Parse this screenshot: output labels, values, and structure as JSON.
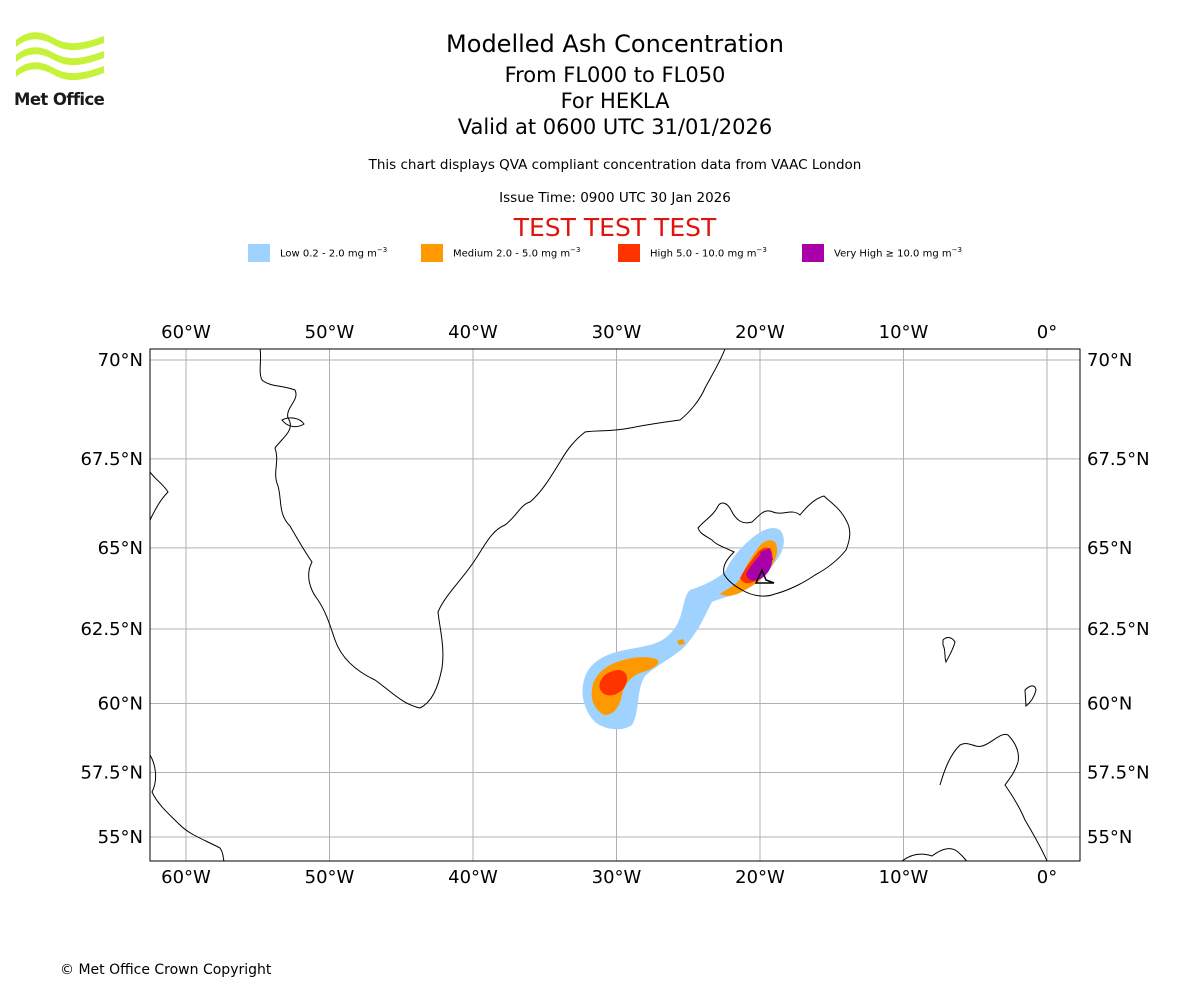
{
  "header": {
    "logo_text": "Met Office",
    "title": "Modelled Ash Concentration",
    "levels": "From FL000 to FL050",
    "volcano": "For HEKLA",
    "valid": "Valid at 0600 UTC 31/01/2026",
    "compliance": "This chart displays QVA compliant concentration data from VAAC London",
    "issue_time": "Issue Time: 0900 UTC 30 Jan 2026",
    "test_banner": "TEST TEST TEST"
  },
  "legend": [
    {
      "label_prefix": "Low 0.2 - 2.0 mg m",
      "color": "#a0d2ff"
    },
    {
      "label_prefix": "Medium 2.0 - 5.0 mg m",
      "color": "#ff9900"
    },
    {
      "label_prefix": "High 5.0 - 10.0 mg m",
      "color": "#ff3300"
    },
    {
      "label_prefix": "Very High ≥ 10.0 mg m",
      "color": "#aa00aa"
    }
  ],
  "legend_unit_exponent": "−3",
  "map": {
    "lon_ticks": [
      "60°W",
      "50°W",
      "40°W",
      "30°W",
      "20°W",
      "10°W",
      "0°"
    ],
    "lat_ticks": [
      "70°N",
      "67.5°N",
      "65°N",
      "62.5°N",
      "60°N",
      "57.5°N",
      "55°N"
    ],
    "lon_values": [
      -60,
      -50,
      -40,
      -30,
      -20,
      -10,
      0
    ],
    "lat_values": [
      70,
      67.5,
      65,
      62.5,
      60,
      57.5,
      55
    ],
    "grid": true,
    "coastline_color": "#000000",
    "gridline_color": "#b0b0b0"
  },
  "footer": {
    "copyright": "© Met Office Crown Copyright"
  }
}
